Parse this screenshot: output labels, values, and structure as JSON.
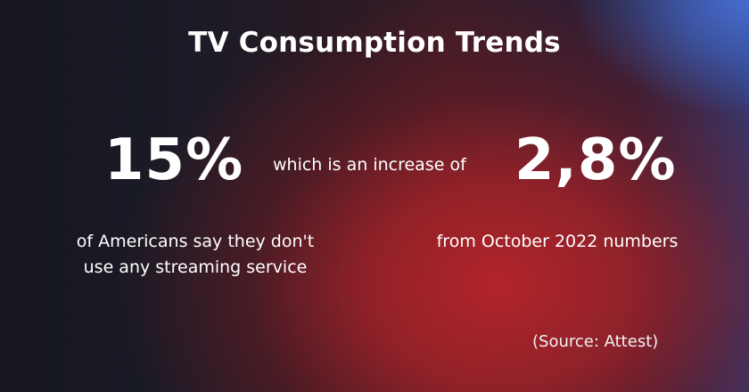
{
  "title": "TV Consumption Trends",
  "left_stat": {
    "value": "15%",
    "description_line1": "of Americans say they don't",
    "description_line2": "use any streaming service"
  },
  "connector_text": "which is an increase of",
  "right_stat": {
    "value": "2,8%",
    "description": "from October 2022 numbers"
  },
  "source": "(Source: Attest)",
  "colors": {
    "text": "#ffffff",
    "background_dark": "#1a1b26",
    "accent_red": "#b2242a",
    "accent_blue": "#486ed2"
  }
}
